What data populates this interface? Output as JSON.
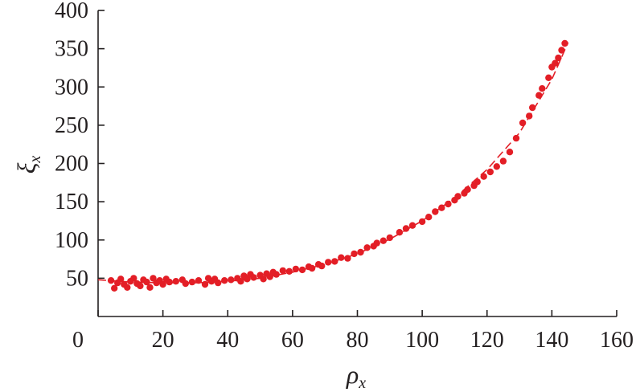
{
  "chart_data": {
    "type": "scatter",
    "title": "",
    "xlabel": "ρ",
    "xlabel_sub": "x",
    "ylabel": "ξ",
    "ylabel_sub": "x",
    "xlim": [
      0,
      160
    ],
    "ylim": [
      0,
      400
    ],
    "xticks": [
      "0",
      "20",
      "40",
      "60",
      "80",
      "100",
      "120",
      "140",
      "160"
    ],
    "yticks": [
      "50",
      "100",
      "150",
      "200",
      "250",
      "300",
      "350",
      "400"
    ],
    "grid": false,
    "legend": "none",
    "point_color": "#e31e26",
    "series": [
      {
        "points": [
          [
            4,
            47
          ],
          [
            5,
            37
          ],
          [
            6,
            44
          ],
          [
            7,
            49
          ],
          [
            8,
            42
          ],
          [
            9,
            38
          ],
          [
            10,
            46
          ],
          [
            11,
            50
          ],
          [
            12,
            43
          ],
          [
            13,
            40
          ],
          [
            14,
            48
          ],
          [
            15,
            45
          ],
          [
            16,
            38
          ],
          [
            17,
            50
          ],
          [
            18,
            44
          ],
          [
            19,
            47
          ],
          [
            20,
            42
          ],
          [
            21,
            49
          ],
          [
            22,
            45
          ],
          [
            24,
            46
          ],
          [
            26,
            48
          ],
          [
            27,
            43
          ],
          [
            29,
            45
          ],
          [
            31,
            47
          ],
          [
            33,
            42
          ],
          [
            34,
            50
          ],
          [
            35,
            46
          ],
          [
            36,
            49
          ],
          [
            37,
            44
          ],
          [
            39,
            47
          ],
          [
            41,
            48
          ],
          [
            43,
            50
          ],
          [
            44,
            46
          ],
          [
            45,
            53
          ],
          [
            46,
            49
          ],
          [
            47,
            55
          ],
          [
            48,
            51
          ],
          [
            50,
            54
          ],
          [
            51,
            49
          ],
          [
            52,
            56
          ],
          [
            53,
            52
          ],
          [
            54,
            58
          ],
          [
            55,
            55
          ],
          [
            57,
            60
          ],
          [
            59,
            59
          ],
          [
            61,
            62
          ],
          [
            63,
            61
          ],
          [
            65,
            65
          ],
          [
            66,
            63
          ],
          [
            68,
            68
          ],
          [
            69,
            66
          ],
          [
            71,
            71
          ],
          [
            73,
            72
          ],
          [
            75,
            77
          ],
          [
            77,
            76
          ],
          [
            79,
            82
          ],
          [
            81,
            84
          ],
          [
            83,
            90
          ],
          [
            85,
            92
          ],
          [
            86,
            96
          ],
          [
            88,
            99
          ],
          [
            90,
            103
          ],
          [
            93,
            110
          ],
          [
            95,
            115
          ],
          [
            97,
            119
          ],
          [
            100,
            124
          ],
          [
            102,
            130
          ],
          [
            104,
            137
          ],
          [
            106,
            142
          ],
          [
            108,
            147
          ],
          [
            110,
            152
          ],
          [
            111,
            157
          ],
          [
            113,
            161
          ],
          [
            114,
            166
          ],
          [
            116,
            171
          ],
          [
            117,
            176
          ],
          [
            119,
            183
          ],
          [
            121,
            189
          ],
          [
            123,
            196
          ],
          [
            125,
            203
          ],
          [
            127,
            215
          ],
          [
            129,
            233
          ],
          [
            131,
            253
          ],
          [
            133,
            262
          ],
          [
            134,
            273
          ],
          [
            136,
            289
          ],
          [
            137,
            298
          ],
          [
            139,
            312
          ],
          [
            140,
            326
          ],
          [
            141,
            331
          ],
          [
            142,
            338
          ],
          [
            143,
            348
          ],
          [
            144,
            357
          ]
        ]
      }
    ],
    "trend_line": {
      "style": "dashed",
      "x": [
        0,
        10,
        20,
        30,
        40,
        50,
        60,
        70,
        80,
        90,
        100,
        110,
        120,
        130,
        140,
        145
      ],
      "y": [
        48,
        45,
        44,
        44,
        46,
        50,
        58,
        68,
        82,
        101,
        125,
        155,
        192,
        240,
        310,
        358
      ]
    }
  }
}
